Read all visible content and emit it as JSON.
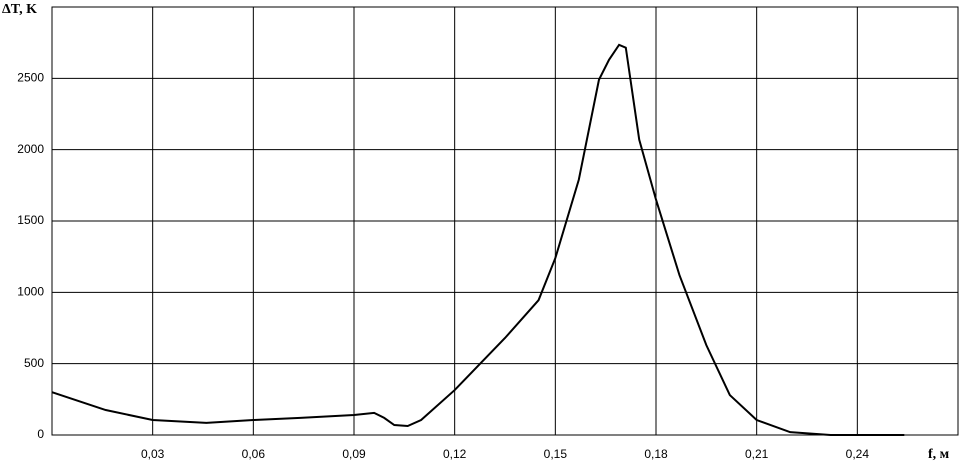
{
  "chart_data": {
    "type": "line",
    "y_label": "ΔT, K",
    "x_label": "f, м",
    "xlim": [
      0,
      0.27
    ],
    "ylim": [
      0,
      3000
    ],
    "xticks": [
      {
        "value": 0.03,
        "label": "0,03"
      },
      {
        "value": 0.06,
        "label": "0,06"
      },
      {
        "value": 0.09,
        "label": "0,09"
      },
      {
        "value": 0.12,
        "label": "0,12"
      },
      {
        "value": 0.15,
        "label": "0,15"
      },
      {
        "value": 0.18,
        "label": "0,18"
      },
      {
        "value": 0.21,
        "label": "0,21"
      },
      {
        "value": 0.24,
        "label": "0,24"
      }
    ],
    "yticks": [
      0,
      500,
      1000,
      1500,
      2000,
      2500
    ],
    "grid": true,
    "color": "#000000",
    "x": [
      0,
      0.016,
      0.03,
      0.046,
      0.06,
      0.074,
      0.09,
      0.096,
      0.099,
      0.102,
      0.106,
      0.11,
      0.12,
      0.135,
      0.145,
      0.15,
      0.157,
      0.163,
      0.166,
      0.169,
      0.171,
      0.175,
      0.18,
      0.187,
      0.195,
      0.202,
      0.21,
      0.22,
      0.232,
      0.24,
      0.254
    ],
    "values": [
      300,
      175,
      105,
      85,
      105,
      120,
      140,
      155,
      120,
      70,
      63,
      105,
      315,
      680,
      945,
      1240,
      1790,
      2490,
      2630,
      2735,
      2715,
      2070,
      1650,
      1120,
      630,
      280,
      105,
      20,
      0,
      0,
      0
    ]
  }
}
